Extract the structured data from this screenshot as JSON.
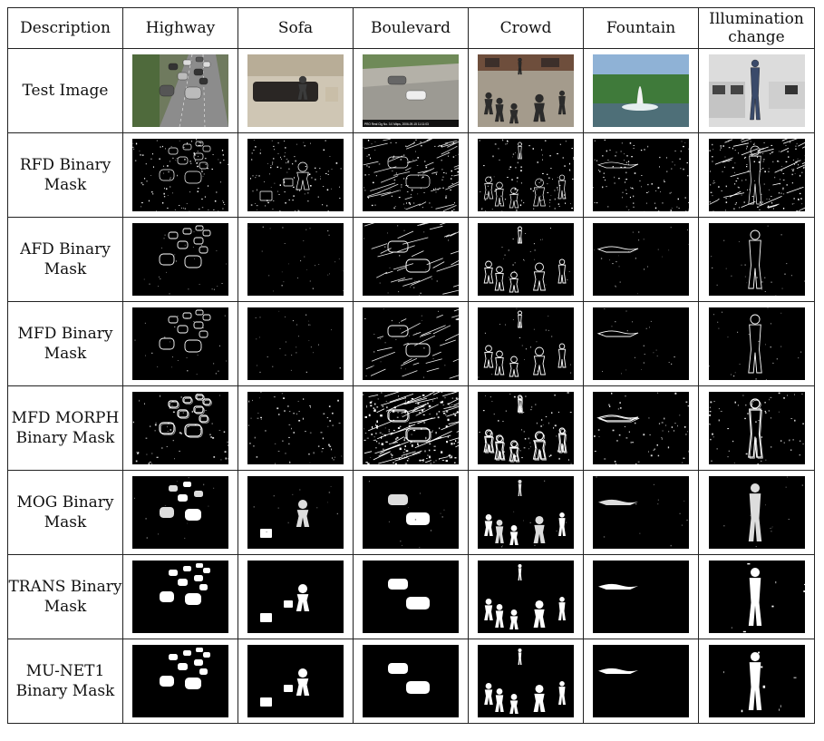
{
  "table": {
    "header": [
      "Description",
      "Highway",
      "Sofa",
      "Boulevard",
      "Crowd",
      "Fountain",
      "Illumination change"
    ],
    "rows": [
      {
        "label": "Test Image",
        "kind": "photo"
      },
      {
        "label": "RFD Binary Mask",
        "kind": "edge-sparse"
      },
      {
        "label": "AFD Binary Mask",
        "kind": "edge-outline"
      },
      {
        "label": "MFD Binary Mask",
        "kind": "edge-outline"
      },
      {
        "label": "MFD MORPH Binary Mask",
        "kind": "edge-dense"
      },
      {
        "label": "MOG Binary Mask",
        "kind": "blob-partial"
      },
      {
        "label": "TRANS Binary Mask",
        "kind": "blob-solid"
      },
      {
        "label": "MU-NET1 Binary Mask",
        "kind": "blob-solid"
      }
    ],
    "boulevard_caption": "PRO Real Cig No. 3.0 Mbps, 2006-09-15 11:11:03"
  }
}
